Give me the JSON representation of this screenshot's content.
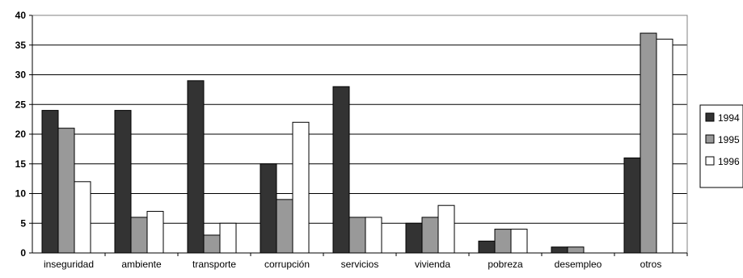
{
  "chart_data": {
    "type": "bar",
    "categories": [
      "inseguridad",
      "ambiente",
      "transporte",
      "corrupción",
      "servicios",
      "vivienda",
      "pobreza",
      "desempleo",
      "otros"
    ],
    "series": [
      {
        "name": "1994",
        "values": [
          24,
          24,
          29,
          15,
          28,
          5,
          2,
          1,
          16
        ],
        "color": "#333333"
      },
      {
        "name": "1995",
        "values": [
          21,
          6,
          3,
          9,
          6,
          6,
          4,
          1,
          37
        ],
        "color": "#999999"
      },
      {
        "name": "1996",
        "values": [
          12,
          7,
          5,
          22,
          6,
          8,
          4,
          0,
          36
        ],
        "color": "#ffffff"
      }
    ],
    "ylim": [
      0,
      40
    ],
    "yticks": [
      0,
      5,
      10,
      15,
      20,
      25,
      30,
      35,
      40
    ],
    "grid": true,
    "legend_position": "right"
  }
}
